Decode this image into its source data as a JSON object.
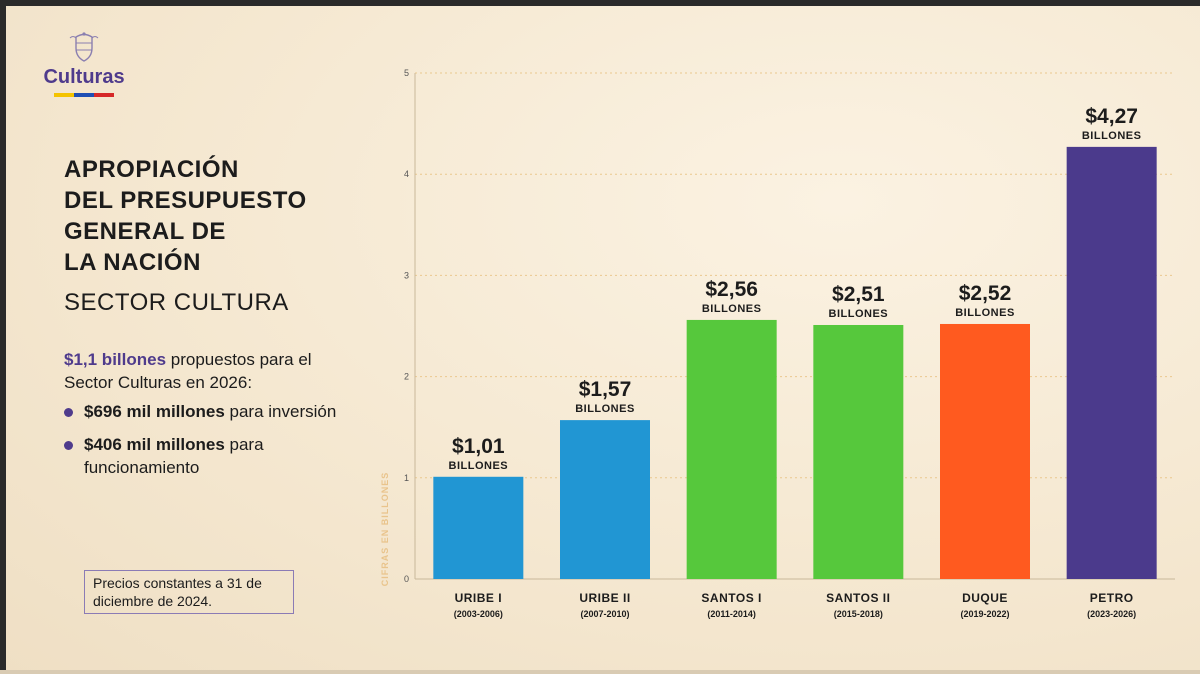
{
  "logo": {
    "text": "Culturas",
    "icon": "coat-of-arms-icon",
    "flag_colors": [
      "#f4c300",
      "#1f4fb4",
      "#d62828"
    ]
  },
  "title_lines": [
    "APROPIACIÓN",
    "DEL PRESUPUESTO",
    "GENERAL DE",
    "LA NACIÓN"
  ],
  "subtitle": "SECTOR CULTURA",
  "proposal": {
    "amount": "$1,1 billones",
    "rest": " propuestos para el Sector Culturas en 2026:"
  },
  "bullets": [
    {
      "bold": "$696 mil millones",
      "rest": " para inversión"
    },
    {
      "bold": "$406 mil millones",
      "rest": " para funcionamiento"
    }
  ],
  "note": "Precios constantes a 31 de diciembre de 2024.",
  "colors": {
    "accent": "#4f3b8c"
  },
  "chart_data": {
    "type": "bar",
    "title": "",
    "xlabel": "",
    "ylabel": "CIFRAS EN BILLONES",
    "ylim": [
      0,
      5
    ],
    "yticks": [
      "0",
      "1",
      "2",
      "3",
      "4",
      "5"
    ],
    "grid": true,
    "categories": [
      {
        "name": "URIBE I",
        "period": "(2003-2006)"
      },
      {
        "name": "URIBE II",
        "period": "(2007-2010)"
      },
      {
        "name": "SANTOS I",
        "period": "(2011-2014)"
      },
      {
        "name": "SANTOS II",
        "period": "(2015-2018)"
      },
      {
        "name": "DUQUE",
        "period": "(2019-2022)"
      },
      {
        "name": "PETRO",
        "period": "(2023-2026)"
      }
    ],
    "values": [
      1.01,
      1.57,
      2.56,
      2.51,
      2.52,
      4.27
    ],
    "value_labels": [
      "$1,01",
      "$1,57",
      "$2,56",
      "$2,51",
      "$2,52",
      "$4,27"
    ],
    "unit_label": "BILLONES",
    "bar_colors": [
      "#2196d3",
      "#2196d3",
      "#56c83c",
      "#56c83c",
      "#ff5a1f",
      "#4b3a8c"
    ]
  }
}
